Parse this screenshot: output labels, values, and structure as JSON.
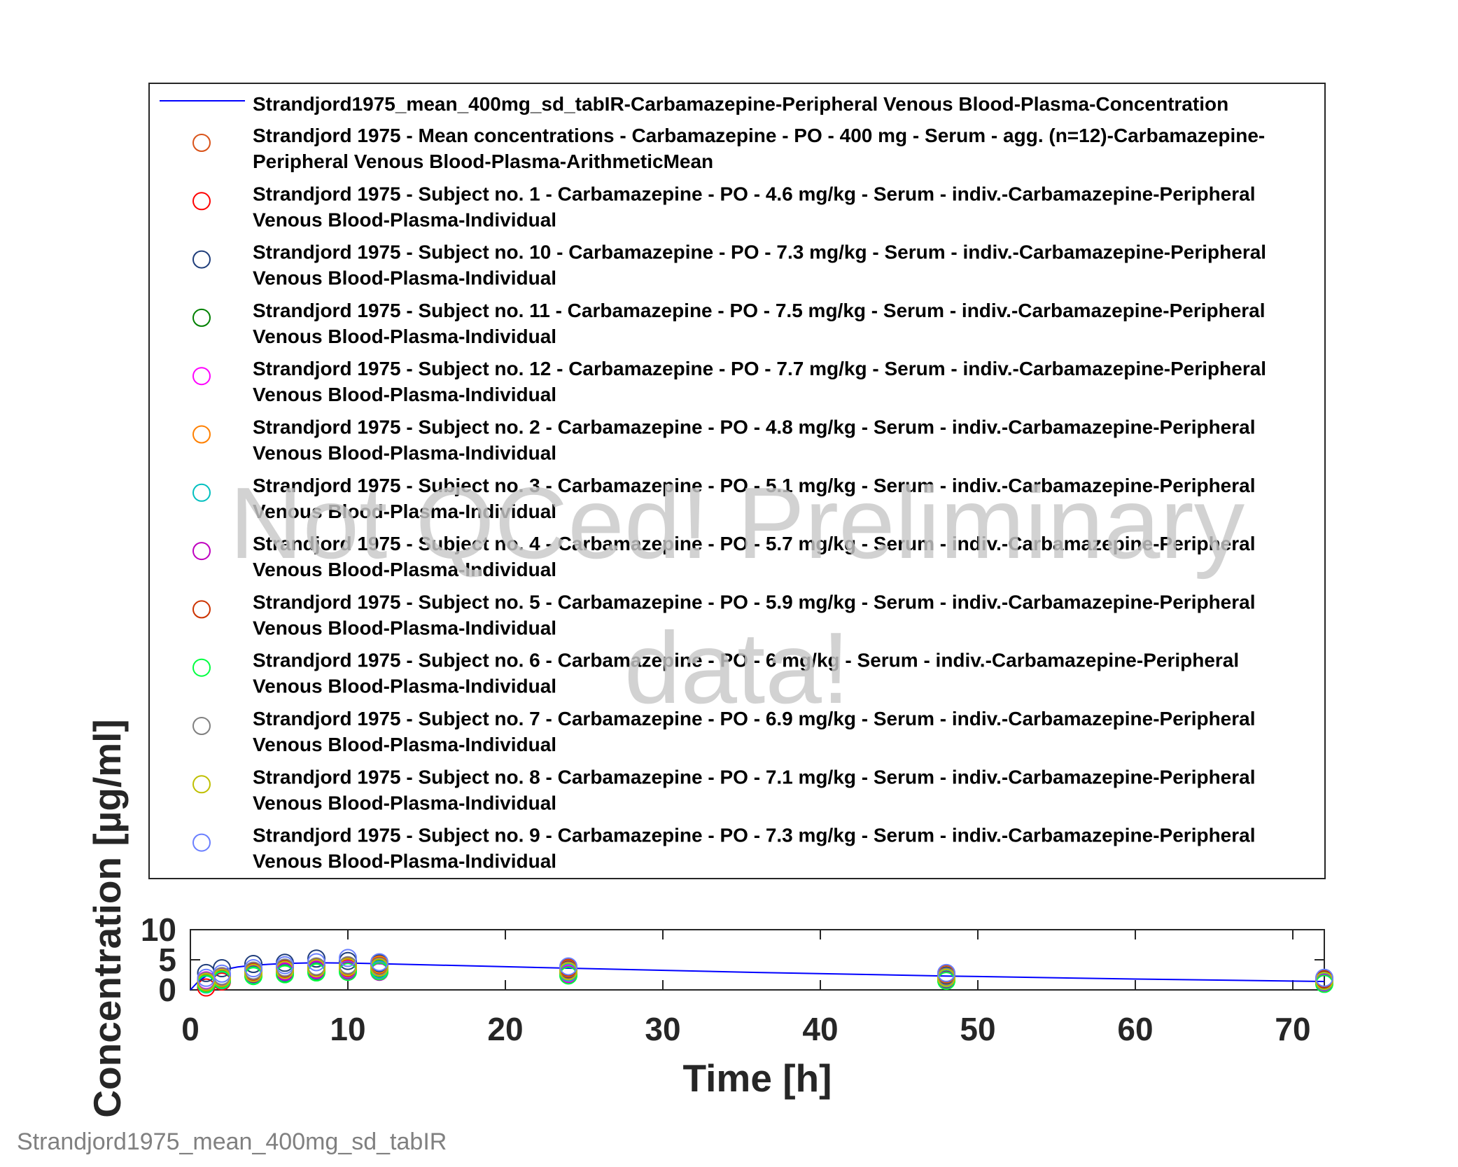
{
  "chart_data": {
    "type": "scatter",
    "xlabel": "Time [h]",
    "ylabel": "Concentration [µg/ml]",
    "xlim": [
      0,
      72
    ],
    "ylim": [
      0,
      10
    ],
    "xticks": [
      "0",
      "10",
      "20",
      "30",
      "40",
      "50",
      "60",
      "70"
    ],
    "yticks": [
      "0",
      "5",
      "10"
    ],
    "grid": false,
    "legend_position": "above plot",
    "watermark": [
      "Not QCed! Preliminary",
      "data!"
    ],
    "footer": "Strandjord1975_mean_400mg_sd_tabIR",
    "series": [
      {
        "name": "Strandjord1975_mean_400mg_sd_tabIR-Carbamazepine-Peripheral Venous Blood-Plasma-Concentration",
        "legend_lines": [
          "Strandjord1975_mean_400mg_sd_tabIR-Carbamazepine-Peripheral Venous Blood-Plasma-Concentration"
        ],
        "style": "line",
        "color": "#0000ff",
        "x": [
          0,
          0.5,
          1,
          2,
          3,
          4,
          6,
          8,
          10,
          12,
          24,
          36,
          48,
          60,
          72
        ],
        "y": [
          0,
          1.4,
          2.3,
          3.3,
          3.8,
          4.1,
          4.4,
          4.5,
          4.45,
          4.35,
          3.6,
          2.9,
          2.3,
          1.8,
          1.4
        ]
      },
      {
        "name": "Strandjord 1975 - Mean concentrations - Carbamazepine - PO - 400 mg - Serum - agg. (n=12)-Carbamazepine-Peripheral Venous Blood-Plasma-ArithmeticMean",
        "legend_lines": [
          "Strandjord 1975 - Mean concentrations - Carbamazepine - PO - 400 mg - Serum - agg. (n=12)-Carbamazepine-",
          "Peripheral Venous Blood-Plasma-ArithmeticMean"
        ],
        "style": "marker",
        "color": "#d95319",
        "x": [
          1,
          2,
          4,
          6,
          8,
          10,
          12,
          24,
          48,
          72
        ],
        "y": [
          1.3,
          2.0,
          3.0,
          3.4,
          3.6,
          3.6,
          3.4,
          3.0,
          2.1,
          1.6
        ]
      },
      {
        "name": "Strandjord 1975 - Subject no. 1 - Carbamazepine - PO - 4.6 mg/kg - Serum - indiv.-Carbamazepine-Peripheral Venous Blood-Plasma-Individual",
        "legend_lines": [
          "Strandjord 1975 - Subject no. 1 - Carbamazepine - PO - 4.6 mg/kg - Serum - indiv.-Carbamazepine-Peripheral",
          "Venous Blood-Plasma-Individual"
        ],
        "style": "marker",
        "color": "#ff0000",
        "x": [
          1,
          2,
          4,
          6,
          8,
          10,
          12,
          24,
          48,
          72
        ],
        "y": [
          0.4,
          1.4,
          2.5,
          3.0,
          3.3,
          3.5,
          3.6,
          3.4,
          2.2,
          1.4
        ]
      },
      {
        "name": "Strandjord 1975 - Subject no. 10 - Carbamazepine - PO - 7.3 mg/kg - Serum - indiv.-Carbamazepine-Peripheral Venous Blood-Plasma-Individual",
        "legend_lines": [
          "Strandjord 1975 - Subject no. 10 - Carbamazepine - PO - 7.3 mg/kg - Serum - indiv.-Carbamazepine-Peripheral",
          "Venous Blood-Plasma-Individual"
        ],
        "style": "marker",
        "color": "#1f3d7a",
        "x": [
          1,
          2,
          4,
          6,
          8,
          10,
          12,
          24,
          48,
          72
        ],
        "y": [
          2.8,
          3.6,
          4.3,
          4.5,
          5.2,
          4.8,
          4.4,
          3.5,
          2.4,
          1.6
        ]
      },
      {
        "name": "Strandjord 1975 - Subject no. 11 - Carbamazepine - PO - 7.5 mg/kg - Serum - indiv.-Carbamazepine-Peripheral Venous Blood-Plasma-Individual",
        "legend_lines": [
          "Strandjord 1975 - Subject no. 11 - Carbamazepine - PO - 7.5 mg/kg - Serum - indiv.-Carbamazepine-Peripheral",
          "Venous Blood-Plasma-Individual"
        ],
        "style": "marker",
        "color": "#008000",
        "x": [
          1,
          2,
          4,
          6,
          8,
          10,
          12,
          24,
          48,
          72
        ],
        "y": [
          1.0,
          1.8,
          2.6,
          2.8,
          3.1,
          3.3,
          3.5,
          2.8,
          1.8,
          1.3
        ]
      },
      {
        "name": "Strandjord 1975 - Subject no. 12 - Carbamazepine - PO - 7.7 mg/kg - Serum - indiv.-Carbamazepine-Peripheral Venous Blood-Plasma-Individual",
        "legend_lines": [
          "Strandjord 1975 - Subject no. 12 - Carbamazepine - PO - 7.7 mg/kg - Serum - indiv.-Carbamazepine-Peripheral",
          "Venous Blood-Plasma-Individual"
        ],
        "style": "marker",
        "color": "#ff00ff",
        "x": [
          1,
          2,
          4,
          6,
          8,
          10,
          12,
          24,
          48,
          72
        ],
        "y": [
          1.6,
          2.2,
          2.9,
          3.2,
          3.4,
          3.4,
          3.2,
          2.7,
          1.9,
          1.2
        ]
      },
      {
        "name": "Strandjord 1975 - Subject no. 2 - Carbamazepine - PO - 4.8 mg/kg - Serum - indiv.-Carbamazepine-Peripheral Venous Blood-Plasma-Individual",
        "legend_lines": [
          "Strandjord 1975 - Subject no. 2 - Carbamazepine - PO - 4.8 mg/kg - Serum - indiv.-Carbamazepine-Peripheral",
          "Venous Blood-Plasma-Individual"
        ],
        "style": "marker",
        "color": "#ff8000",
        "x": [
          1,
          2,
          4,
          6,
          8,
          10,
          12,
          24,
          48,
          72
        ],
        "y": [
          1.2,
          2.0,
          3.1,
          3.6,
          3.8,
          4.0,
          4.2,
          3.6,
          2.6,
          1.9
        ]
      },
      {
        "name": "Strandjord 1975 - Subject no. 3 - Carbamazepine - PO - 5.1 mg/kg - Serum - indiv.-Carbamazepine-Peripheral Venous Blood-Plasma-Individual",
        "legend_lines": [
          "Strandjord 1975 - Subject no. 3 - Carbamazepine - PO - 5.1 mg/kg - Serum - indiv.-Carbamazepine-Peripheral",
          "Venous Blood-Plasma-Individual"
        ],
        "style": "marker",
        "color": "#00bfbf",
        "x": [
          1,
          2,
          4,
          6,
          8,
          10,
          12,
          24,
          48,
          72
        ],
        "y": [
          0.9,
          1.6,
          2.4,
          2.9,
          3.2,
          3.3,
          3.4,
          2.9,
          1.9,
          1.4
        ]
      },
      {
        "name": "Strandjord 1975 - Subject no. 4 - Carbamazepine - PO - 5.7 mg/kg - Serum - indiv.-Carbamazepine-Peripheral Venous Blood-Plasma-Individual",
        "legend_lines": [
          "Strandjord 1975 - Subject no. 4 - Carbamazepine - PO - 5.7 mg/kg - Serum - indiv.-Carbamazepine-Peripheral",
          "Venous Blood-Plasma-Individual"
        ],
        "style": "marker",
        "color": "#bf00bf",
        "x": [
          1,
          2,
          4,
          6,
          8,
          10,
          12,
          24,
          48,
          72
        ],
        "y": [
          1.4,
          2.1,
          2.7,
          3.0,
          3.3,
          3.2,
          3.0,
          2.5,
          1.6,
          1.1
        ]
      },
      {
        "name": "Strandjord 1975 - Subject no. 5 - Carbamazepine - PO - 5.9 mg/kg - Serum - indiv.-Carbamazepine-Peripheral Venous Blood-Plasma-Individual",
        "legend_lines": [
          "Strandjord 1975 - Subject no. 5 - Carbamazepine - PO - 5.9 mg/kg - Serum - indiv.-Carbamazepine-Peripheral",
          "Venous Blood-Plasma-Individual"
        ],
        "style": "marker",
        "color": "#cc3300",
        "x": [
          1,
          2,
          4,
          6,
          8,
          10,
          12,
          24,
          48,
          72
        ],
        "y": [
          1.1,
          1.9,
          3.0,
          3.5,
          3.8,
          4.0,
          4.0,
          3.7,
          2.7,
          1.8
        ]
      },
      {
        "name": "Strandjord 1975 - Subject no. 6 - Carbamazepine - PO - 6 mg/kg - Serum - indiv.-Carbamazepine-Peripheral Venous Blood-Plasma-Individual",
        "legend_lines": [
          "Strandjord 1975 - Subject no. 6 - Carbamazepine - PO - 6 mg/kg - Serum - indiv.-Carbamazepine-Peripheral",
          "Venous Blood-Plasma-Individual"
        ],
        "style": "marker",
        "color": "#00ff40",
        "x": [
          1,
          2,
          4,
          6,
          8,
          10,
          12,
          24,
          48,
          72
        ],
        "y": [
          1.0,
          1.7,
          2.3,
          2.6,
          2.9,
          3.0,
          3.1,
          2.4,
          1.5,
          1.0
        ]
      },
      {
        "name": "Strandjord 1975 - Subject no. 7 - Carbamazepine - PO - 6.9 mg/kg - Serum - indiv.-Carbamazepine-Peripheral Venous Blood-Plasma-Individual",
        "legend_lines": [
          "Strandjord 1975 - Subject no. 7 - Carbamazepine - PO - 6.9 mg/kg - Serum - indiv.-Carbamazepine-Peripheral",
          "Venous Blood-Plasma-Individual"
        ],
        "style": "marker",
        "color": "#808080",
        "x": [
          1,
          2,
          4,
          6,
          8,
          10,
          12,
          24,
          48,
          72
        ],
        "y": [
          1.5,
          2.3,
          3.2,
          3.7,
          3.9,
          4.1,
          3.9,
          3.2,
          2.2,
          1.5
        ]
      },
      {
        "name": "Strandjord 1975 - Subject no. 8 - Carbamazepine - PO - 7.1 mg/kg - Serum - indiv.-Carbamazepine-Peripheral Venous Blood-Plasma-Individual",
        "legend_lines": [
          "Strandjord 1975 - Subject no. 8 - Carbamazepine - PO - 7.1 mg/kg - Serum - indiv.-Carbamazepine-Peripheral",
          "Venous Blood-Plasma-Individual"
        ],
        "style": "marker",
        "color": "#bfbf00",
        "x": [
          1,
          2,
          4,
          6,
          8,
          10,
          12,
          24,
          48,
          72
        ],
        "y": [
          1.3,
          2.0,
          2.8,
          3.3,
          3.6,
          3.8,
          3.7,
          3.1,
          2.0,
          1.5
        ]
      },
      {
        "name": "Strandjord 1975 - Subject no. 9 - Carbamazepine - PO - 7.3 mg/kg - Serum - indiv.-Carbamazepine-Peripheral Venous Blood-Plasma-Individual",
        "legend_lines": [
          "Strandjord 1975 - Subject no. 9 - Carbamazepine - PO - 7.3 mg/kg - Serum - indiv.-Carbamazepine-Peripheral",
          "Venous Blood-Plasma-Individual"
        ],
        "style": "marker",
        "color": "#6a7fff",
        "x": [
          1,
          2,
          4,
          6,
          8,
          10,
          12,
          24,
          48,
          72
        ],
        "y": [
          2.0,
          2.7,
          3.6,
          4.1,
          4.6,
          5.3,
          4.6,
          3.9,
          2.8,
          2.0
        ]
      }
    ]
  }
}
